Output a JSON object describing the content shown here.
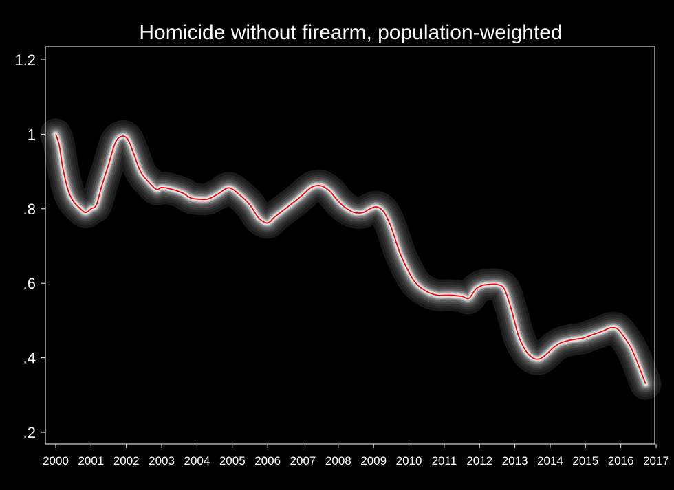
{
  "chart_data": {
    "type": "line",
    "title": "Homicide without firearm, population-weighted",
    "xlabel": "",
    "ylabel": "",
    "xlim": [
      2000,
      2017
    ],
    "ylim": [
      0.2,
      1.2
    ],
    "x_ticks": [
      2000,
      2001,
      2002,
      2003,
      2004,
      2005,
      2006,
      2007,
      2008,
      2009,
      2010,
      2011,
      2012,
      2013,
      2014,
      2015,
      2016,
      2017
    ],
    "x_tick_labels": [
      "2000",
      "2001",
      "2002",
      "2003",
      "2004",
      "2005",
      "2006",
      "2007",
      "2008",
      "2009",
      "2010",
      "2011",
      "2012",
      "2013",
      "2014",
      "2015",
      "2016",
      "2017"
    ],
    "y_ticks": [
      0.2,
      0.4,
      0.6,
      0.8,
      1.0,
      1.2
    ],
    "y_tick_labels": [
      ".2",
      ".4",
      ".6",
      ".8",
      "1",
      "1.2"
    ],
    "grid": false,
    "legend": "none",
    "colors": {
      "background": "#000000",
      "line": "#ff0000",
      "band": "#ffffff",
      "axis": "#ffffff"
    },
    "series": [
      {
        "x": [
          2000.0,
          2000.1,
          2000.2,
          2000.35,
          2000.5,
          2000.7,
          2000.85,
          2001.0,
          2001.15,
          2001.3,
          2001.5,
          2001.7,
          2001.9,
          2002.05,
          2002.2,
          2002.4,
          2002.6,
          2002.85,
          2003.0,
          2003.3,
          2003.6,
          2003.8,
          2004.0,
          2004.3,
          2004.6,
          2004.9,
          2005.2,
          2005.5,
          2005.75,
          2006.0,
          2006.2,
          2006.5,
          2006.8,
          2007.0,
          2007.25,
          2007.5,
          2007.75,
          2008.0,
          2008.2,
          2008.45,
          2008.7,
          2008.9,
          2009.1,
          2009.3,
          2009.5,
          2009.75,
          2010.0,
          2010.2,
          2010.5,
          2010.8,
          2011.0,
          2011.2,
          2011.5,
          2011.7,
          2011.9,
          2012.1,
          2012.3,
          2012.5,
          2012.7,
          2012.9,
          2013.1,
          2013.3,
          2013.5,
          2013.7,
          2013.9,
          2014.1,
          2014.3,
          2014.6,
          2014.9,
          2015.2,
          2015.5,
          2015.7,
          2015.9,
          2016.1,
          2016.3,
          2016.5,
          2016.7
        ],
        "values": [
          1.0,
          0.97,
          0.91,
          0.85,
          0.82,
          0.8,
          0.79,
          0.8,
          0.81,
          0.86,
          0.92,
          0.98,
          0.995,
          0.985,
          0.95,
          0.9,
          0.875,
          0.852,
          0.857,
          0.852,
          0.842,
          0.83,
          0.826,
          0.826,
          0.84,
          0.856,
          0.838,
          0.81,
          0.775,
          0.762,
          0.778,
          0.8,
          0.822,
          0.838,
          0.858,
          0.862,
          0.848,
          0.82,
          0.803,
          0.79,
          0.79,
          0.8,
          0.805,
          0.79,
          0.75,
          0.68,
          0.63,
          0.6,
          0.578,
          0.568,
          0.568,
          0.568,
          0.565,
          0.56,
          0.585,
          0.595,
          0.597,
          0.597,
          0.585,
          0.53,
          0.46,
          0.42,
          0.4,
          0.397,
          0.41,
          0.428,
          0.44,
          0.448,
          0.452,
          0.462,
          0.472,
          0.48,
          0.478,
          0.455,
          0.425,
          0.38,
          0.33
        ]
      }
    ]
  }
}
